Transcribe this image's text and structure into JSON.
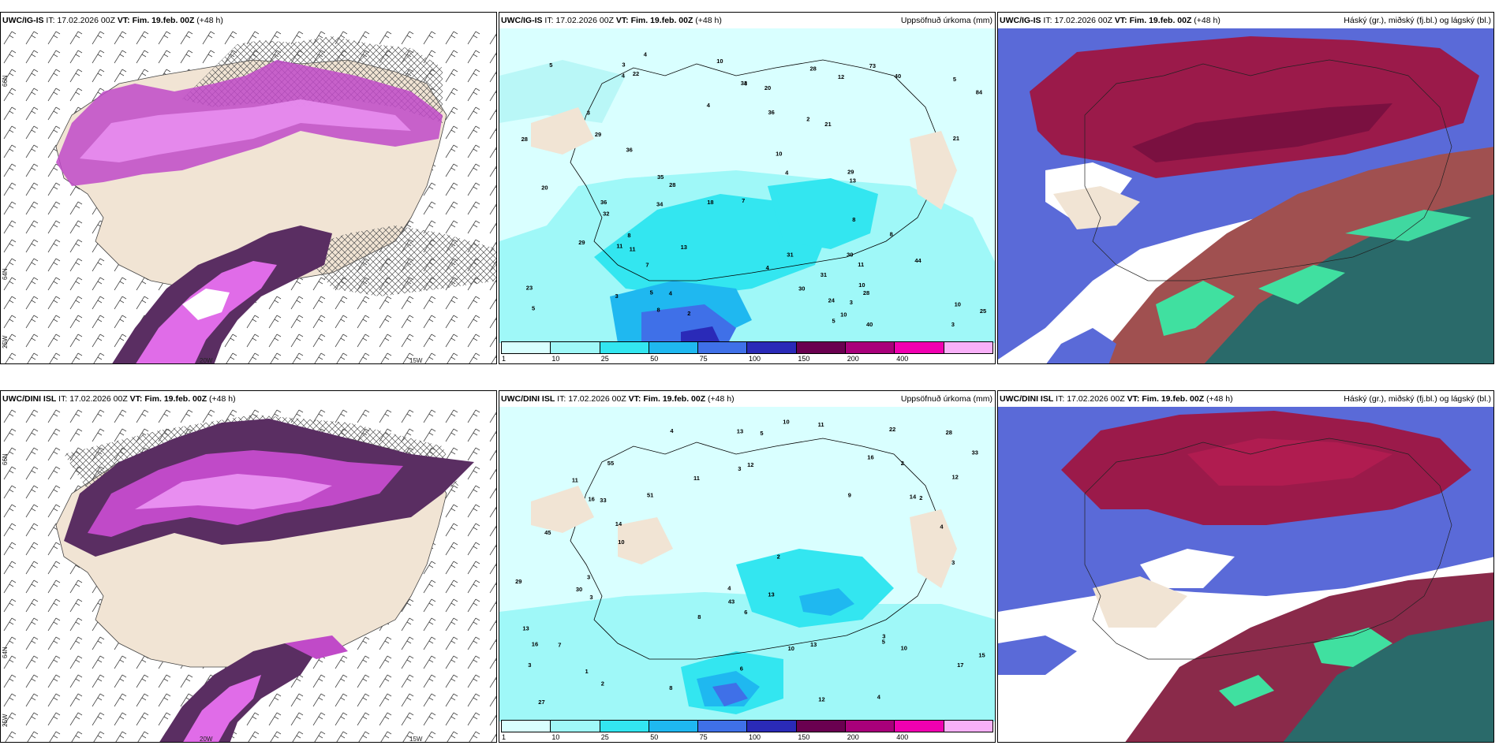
{
  "panels": [
    {
      "model": "UWC/IG-IS",
      "it_label": "IT:",
      "it": "17.02.2026 00Z",
      "vt_label": "VT:",
      "vt": "Fim. 19.feb. 00Z",
      "lead": "(+48 h)",
      "right_title": ""
    },
    {
      "model": "UWC/IG-IS",
      "it_label": "IT:",
      "it": "17.02.2026 00Z",
      "vt_label": "VT:",
      "vt": "Fim. 19.feb. 00Z",
      "lead": "(+48 h)",
      "right_title": "Uppsöfnuð úrkoma (mm)"
    },
    {
      "model": "UWC/IG-IS",
      "it_label": "IT:",
      "it": "17.02.2026 00Z",
      "vt_label": "VT:",
      "vt": "Fim. 19.feb. 00Z",
      "lead": "(+48 h)",
      "right_title": "Háský (gr.), miðský (fj.bl.) og lágský (bl.)"
    },
    {
      "model": "UWC/DINI ISL",
      "it_label": "IT:",
      "it": "17.02.2026 00Z",
      "vt_label": "VT:",
      "vt": "Fim. 19.feb. 00Z",
      "lead": "(+48 h)",
      "right_title": ""
    },
    {
      "model": "UWC/DINI ISL",
      "it_label": "IT:",
      "it": "17.02.2026 00Z",
      "vt_label": "VT:",
      "vt": "Fim. 19.feb. 00Z",
      "lead": "(+48 h)",
      "right_title": "Uppsöfnuð úrkoma (mm)"
    },
    {
      "model": "UWC/DINI ISL",
      "it_label": "IT:",
      "it": "17.02.2026 00Z",
      "vt_label": "VT:",
      "vt": "Fim. 19.feb. 00Z",
      "lead": "(+48 h)",
      "right_title": "Háský (gr.), miðský (fj.bl.) og lágský (bl.)"
    }
  ],
  "coords": {
    "lat66": "66N",
    "lat64": "64N",
    "lon25": "25W",
    "lon20": "20W",
    "lon15": "15W",
    "lat_right": "66N",
    "lat_right2": "64N"
  },
  "legend": {
    "ticks": [
      "1",
      "10",
      "25",
      "50",
      "75",
      "100",
      "150",
      "200",
      "400"
    ],
    "colors": [
      "#d9ffff",
      "#9ff8f8",
      "#33e6f0",
      "#1fb8f0",
      "#3f70e8",
      "#2a2ab8",
      "#6a0050",
      "#a8007a",
      "#f000b0",
      "#f8b0f8"
    ]
  },
  "precip_top": [
    "4",
    "3",
    "4",
    "11",
    "29",
    "13",
    "11",
    "3",
    "10",
    "11",
    "12",
    "20",
    "23",
    "21",
    "10",
    "7",
    "5",
    "4",
    "5",
    "5",
    "4",
    "3",
    "2",
    "5",
    "3",
    "7",
    "5",
    "4",
    "2",
    "3",
    "4",
    "4",
    "13",
    "10",
    "32",
    "30",
    "29",
    "31",
    "22",
    "44",
    "28",
    "24",
    "36",
    "28",
    "35",
    "30",
    "29",
    "33",
    "34",
    "36",
    "36",
    "31",
    "40",
    "40",
    "25",
    "73",
    "28",
    "21",
    "20",
    "28",
    "84",
    "18",
    "8",
    "8",
    "8",
    "10",
    "10",
    "8"
  ],
  "precip_bottom": [
    "6",
    "3",
    "2",
    "3",
    "3",
    "4",
    "11",
    "12",
    "13",
    "16",
    "17",
    "10",
    "9",
    "13",
    "10",
    "8",
    "2",
    "4",
    "3",
    "5",
    "5",
    "2",
    "3",
    "3",
    "4",
    "13",
    "15",
    "16",
    "13",
    "11",
    "12",
    "10",
    "11",
    "12",
    "29",
    "30",
    "27",
    "14",
    "16",
    "28",
    "55",
    "45",
    "43",
    "51",
    "33",
    "33",
    "22",
    "14",
    "10",
    "7",
    "8",
    "4",
    "6",
    "1",
    "2"
  ]
}
